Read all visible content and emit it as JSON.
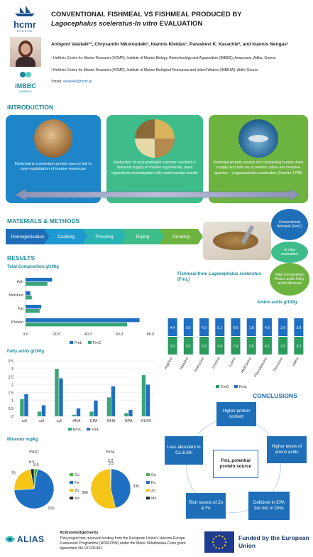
{
  "header": {
    "logo_text": "hcmr",
    "logo_sub": "ΕΛΚΕΘΕ",
    "imbbc_text": "IMBBC",
    "imbbc_sub": "ΙΘΑΒΒΧΑ",
    "title_line1": "CONVENTIONAL FISHMEAL VS FISHMEAL PRODUCED BY",
    "title_line2_italic": "Lagocephalus sceleratus-In vitro",
    "title_line2_rest": " EVALUATION",
    "authors": "Antigoni Vasilaki¹*, Chrysanthi Nikoloudaki¹, Ioannis Kleidas¹, Paraskevi K. Karachle², and Ioannis Nengas¹",
    "aff1": "¹ Hellenic Centre for Marine Research (HCMR), Institute of Marine Biology, Biotechnology and Aquaculture (IMBBC), Anavyssos, Attika, Greece",
    "aff2": "² Hellenic Centre for Marine Research (HCMR), Institute of Marine Biological Resources and Inland Waters (IMBRIW), Attiki, Greece",
    "email_label": "*email: ",
    "email": "avasilaki@hcmr.gr"
  },
  "intro": {
    "heading": "INTRODUCTION",
    "card1": "Fishmeal is a premium protein source led to over-exploitation of marine resources",
    "card2": "Reduction of unsustainable catches resulted  in reduced supply of marine ingredients, plant ingredients investigated with controversial results",
    "card3_a": "Potential protein source not competing human food supply and with no economic value are invasive species –",
    "card3_b": "Lagocephalus sceleratus",
    "card3_c": " (Gmelin 1789)",
    "colors": {
      "card1": "#1e86c8",
      "card2": "#3ebd8a",
      "card3": "#6cb33f"
    }
  },
  "methods": {
    "heading": "MATERIALS & METHODS",
    "steps": [
      "Homogenisation",
      "Cooking",
      "Pressing",
      "Drying",
      "Grinding"
    ],
    "circles": {
      "c1": "Conventional fishmeal (FmC)",
      "c2a": "In vitro",
      "c2b": "evaluation",
      "c3": "Total Composition Amino acids Fatty acids Minerals"
    }
  },
  "results": {
    "heading": "RESULTS",
    "tc_title": "Total Composition g/100g",
    "fml_title_a": "Fishmeal from ",
    "fml_title_b": "Lagocephalus sceleratus",
    "fml_title_c": " (FmL)",
    "aa_title": "Amino acids g/100g",
    "fa_title": "Fatty acids g/100g",
    "min_title": "Minerals mg/kg",
    "legend_fml": "FmL",
    "legend_fmc": "FmC"
  },
  "chart_data": [
    {
      "type": "bar",
      "title": "Total Composition g/100g",
      "orientation": "horizontal",
      "categories": [
        "Ash",
        "Moisture",
        "Fat",
        "Protein"
      ],
      "series": [
        {
          "name": "FmL",
          "values": [
            17,
            3,
            10,
            73
          ],
          "color": "#1f6fc2"
        },
        {
          "name": "FmC",
          "values": [
            14,
            4,
            9,
            65
          ],
          "color": "#3aa57a"
        }
      ],
      "xlim": [
        0,
        80
      ],
      "xticks": [
        "0.0",
        "20.0",
        "40.0",
        "60.0",
        "80.0"
      ]
    },
    {
      "type": "bar",
      "title": "Amino acids g/100g",
      "stacked": true,
      "categories": [
        "Arginine",
        "Histidine",
        "Isoleucine",
        "Leucine",
        "Lysine",
        "Methionine",
        "Phenylalanine",
        "Threonine",
        "Valine"
      ],
      "series": [
        {
          "name": "FmC",
          "values": [
            3.0,
            0.5,
            3.3,
            4.5,
            7.4,
            3.6,
            4.1,
            2.5,
            3.3
          ],
          "labels": [
            "3.0",
            "0.5",
            "3.3",
            "4.5",
            "7.4",
            "3.6",
            "4.1",
            "2.5",
            "3.3"
          ],
          "color": "#2b9b5e"
        },
        {
          "name": "FmL",
          "values": [
            4.4,
            0.6,
            4.2,
            5.1,
            9.6,
            1.8,
            4.8,
            2.6,
            3.8
          ],
          "labels": [
            "4.4",
            "0.6",
            "4.2",
            "5.1",
            "9.6",
            "1.8",
            "4.8",
            "2.6",
            "3.8"
          ],
          "color": "#1f6fc2"
        }
      ]
    },
    {
      "type": "bar",
      "title": "Fatty acids g/100g",
      "categories": [
        "ω9",
        "ω6",
        "ω3",
        "ARA",
        "EPA",
        "DHA",
        "DPA",
        "HUFA"
      ],
      "series": [
        {
          "name": "FmC",
          "values": [
            1.1,
            0.3,
            3.0,
            0.1,
            0.3,
            1.2,
            0.2,
            2.6
          ],
          "color": "#3aa57a"
        },
        {
          "name": "FmL",
          "values": [
            1.4,
            0.7,
            2.4,
            0.5,
            1.0,
            1.9,
            0.4,
            2.0
          ],
          "color": "#1f6fc2"
        }
      ],
      "ylim": [
        0,
        3.5
      ],
      "yticks": [
        "0",
        "0.5",
        "1",
        "1.5",
        "2",
        "2.5",
        "3",
        "3.5"
      ]
    },
    {
      "type": "pie",
      "title": "FmC",
      "categories": [
        "Cu",
        "Fe",
        "Zn",
        "Mn"
      ],
      "values": [
        8.5,
        216,
        70,
        8.9
      ],
      "labels": [
        "8.5",
        "216",
        "70",
        "8.9"
      ],
      "colors": [
        "#4caf50",
        "#1f6fc2",
        "#f5c518",
        "#1b2a3a"
      ]
    },
    {
      "type": "pie",
      "title": "FmL",
      "categories": [
        "Cu",
        "Fe",
        "Zn",
        "Mn"
      ],
      "values": [
        3.5,
        330,
        388,
        2.2
      ],
      "labels": [
        "3.5",
        "330",
        "388",
        "2.2"
      ],
      "colors": [
        "#4caf50",
        "#1f6fc2",
        "#f5c518",
        "#1b2a3a"
      ]
    }
  ],
  "conclusions": {
    "heading": "CONCLUSIONS",
    "center": "FmL potential protein source",
    "c1": "Higher protein content",
    "c2": "Higher levels of amino acids",
    "c3": "Deficient in EPA but rich in DHA",
    "c4": "Rich source of Zn & Fe",
    "c5": "Less abundant in Cu & Mn"
  },
  "footer": {
    "alias": "ALIAS",
    "ack_title": "Acknowledgements",
    "ack_text": "This project has received funding from the European Union's Horizon Europe Framework Programme (HORIZON) under the Marie Skłodowska-Curie grant agreement No 101131441",
    "eu_text": "Funded by the European Union"
  }
}
